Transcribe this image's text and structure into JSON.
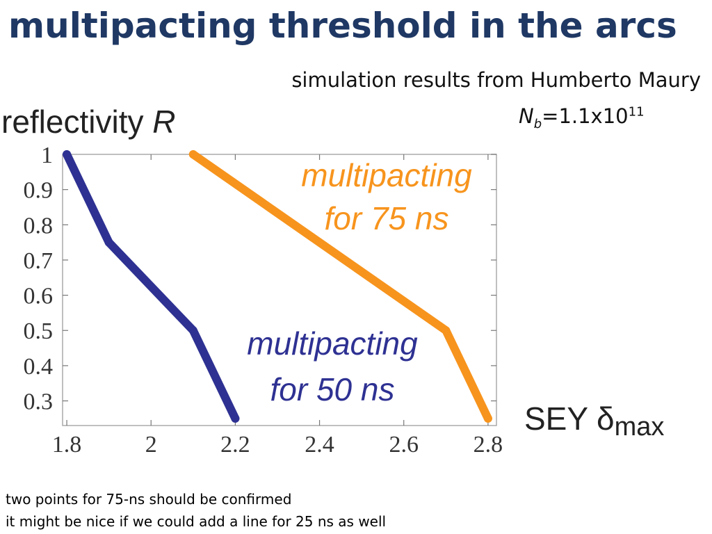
{
  "slide": {
    "title": "multipacting threshold in the arcs",
    "subtitle": "simulation results from Humberto Maury",
    "bunch": {
      "symbol": "N",
      "subscript": "b",
      "value": "=1.1x10",
      "exponent": "11"
    },
    "notes": [
      "two points for 75-ns should be confirmed",
      "it might be nice if we could add a line for 25 ns as well"
    ]
  },
  "chart_data": {
    "type": "line",
    "ylabel": {
      "text": "reflectivity ",
      "symbol": "R"
    },
    "xlabel": {
      "text": "SEY ",
      "symbol": "δ",
      "subscript": "max"
    },
    "xlim": [
      1.79,
      2.82
    ],
    "ylim": [
      0.23,
      1.0
    ],
    "xticks": [
      1.8,
      2.0,
      2.2,
      2.4,
      2.6,
      2.8
    ],
    "xtick_labels": [
      "1.8",
      "2",
      "2.2",
      "2.4",
      "2.6",
      "2.8"
    ],
    "yticks": [
      0.3,
      0.4,
      0.5,
      0.6,
      0.7,
      0.8,
      0.9,
      1.0
    ],
    "ytick_labels": [
      "0.3",
      "0.4",
      "0.5",
      "0.6",
      "0.7",
      "0.8",
      "0.9",
      "1"
    ],
    "grid": false,
    "series": [
      {
        "x": [
          1.8,
          1.9,
          2.1,
          2.2
        ],
        "y": [
          1.0,
          0.75,
          0.5,
          0.25
        ],
        "color": "#2e3192",
        "annotation": [
          "multipacting",
          "for 50 ns"
        ]
      },
      {
        "x": [
          2.1,
          2.7,
          2.8
        ],
        "y": [
          1.0,
          0.5,
          0.25
        ],
        "color": "#f7941d",
        "annotation": [
          "multipacting",
          "for 75 ns"
        ]
      }
    ],
    "frame_color": "#aaaaaa",
    "tick_color": "#777777"
  }
}
